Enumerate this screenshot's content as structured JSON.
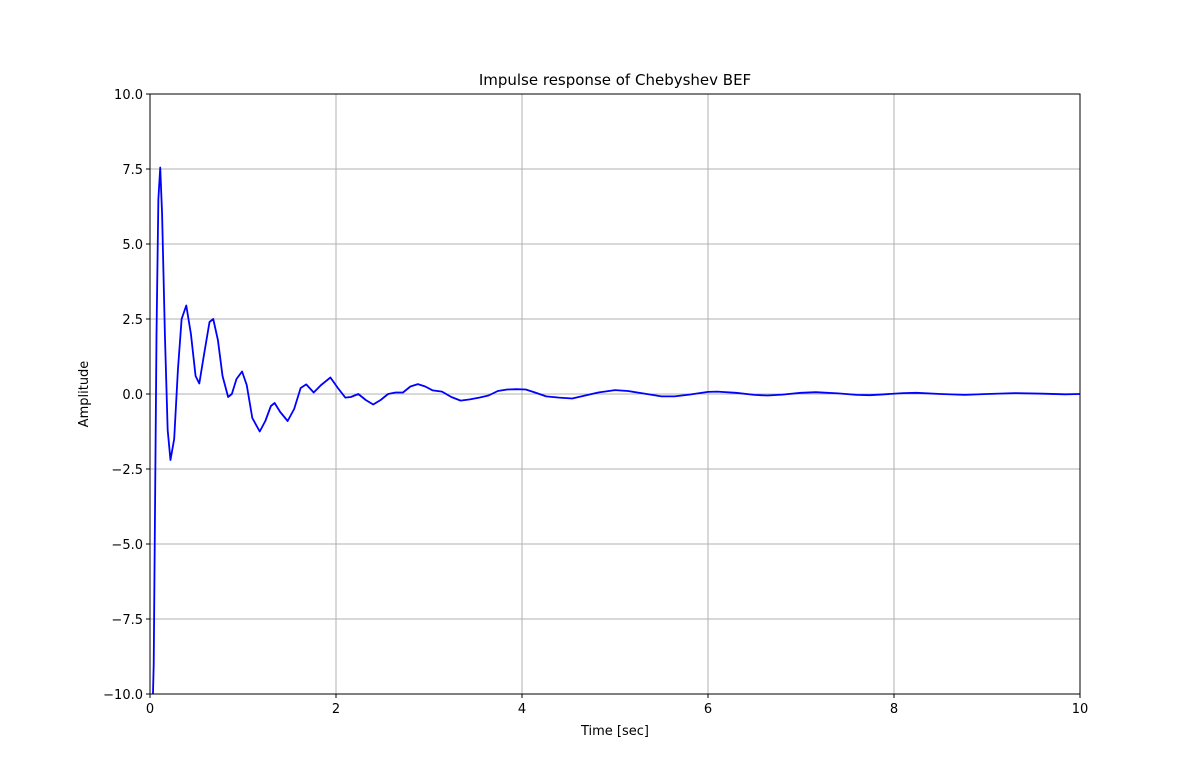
{
  "chart_data": {
    "type": "line",
    "title": "Impulse response of Chebyshev BEF",
    "x_label": "Time  [sec]",
    "y_label": "Amplitude",
    "xlim": [
      0,
      10
    ],
    "ylim": [
      -10,
      10
    ],
    "xticks": [
      0,
      2,
      4,
      6,
      8,
      10
    ],
    "yticks": [
      {
        "value": -10,
        "label": "−10.0"
      },
      {
        "value": -7.5,
        "label": "−7.5"
      },
      {
        "value": -5,
        "label": "−5.0"
      },
      {
        "value": -2.5,
        "label": "−2.5"
      },
      {
        "value": 0,
        "label": "0.0"
      },
      {
        "value": 2.5,
        "label": "2.5"
      },
      {
        "value": 5,
        "label": "5.0"
      },
      {
        "value": 7.5,
        "label": "7.5"
      },
      {
        "value": 10,
        "label": "10.0"
      }
    ],
    "grid": true,
    "x": [
      0,
      0.04,
      0.07,
      0.09,
      0.11,
      0.13,
      0.16,
      0.19,
      0.22,
      0.26,
      0.3,
      0.34,
      0.39,
      0.44,
      0.49,
      0.53,
      0.58,
      0.64,
      0.68,
      0.73,
      0.78,
      0.84,
      0.88,
      0.93,
      0.99,
      1.04,
      1.1,
      1.18,
      1.24,
      1.3,
      1.34,
      1.4,
      1.48,
      1.55,
      1.62,
      1.68,
      1.76,
      1.84,
      1.94,
      2.02,
      2.1,
      2.16,
      2.24,
      2.32,
      2.4,
      2.48,
      2.56,
      2.64,
      2.72,
      2.8,
      2.88,
      2.96,
      3.04,
      3.14,
      3.24,
      3.34,
      3.44,
      3.54,
      3.64,
      3.74,
      3.84,
      3.94,
      4.04,
      4.14,
      4.26,
      4.4,
      4.54,
      4.68,
      4.82,
      5.0,
      5.14,
      5.3,
      5.5,
      5.64,
      5.8,
      6.0,
      6.1,
      6.3,
      6.5,
      6.64,
      6.8,
      7.0,
      7.16,
      7.4,
      7.6,
      7.74,
      7.9,
      8.1,
      8.24,
      8.5,
      8.76,
      9.0,
      9.3,
      9.6,
      9.84,
      10
    ],
    "series": [
      {
        "name": "impulse response",
        "color": "#0000ff",
        "values": [
          -14,
          -9,
          2,
          6.5,
          7.55,
          6.0,
          2,
          -1.2,
          -2.2,
          -1.5,
          0.8,
          2.5,
          2.95,
          2.0,
          0.6,
          0.35,
          1.3,
          2.4,
          2.5,
          1.8,
          0.6,
          -0.1,
          0.0,
          0.5,
          0.75,
          0.3,
          -0.8,
          -1.25,
          -0.9,
          -0.4,
          -0.3,
          -0.6,
          -0.9,
          -0.5,
          0.2,
          0.32,
          0.05,
          0.3,
          0.55,
          0.2,
          -0.12,
          -0.1,
          0.0,
          -0.2,
          -0.35,
          -0.2,
          0.0,
          0.05,
          0.05,
          0.25,
          0.33,
          0.25,
          0.12,
          0.08,
          -0.1,
          -0.22,
          -0.18,
          -0.12,
          -0.05,
          0.1,
          0.15,
          0.16,
          0.15,
          0.05,
          -0.08,
          -0.12,
          -0.15,
          -0.05,
          0.05,
          0.13,
          0.1,
          0.02,
          -0.08,
          -0.08,
          -0.02,
          0.07,
          0.08,
          0.04,
          -0.03,
          -0.05,
          -0.02,
          0.04,
          0.06,
          0.02,
          -0.03,
          -0.04,
          -0.01,
          0.03,
          0.04,
          0.0,
          -0.03,
          0.0,
          0.03,
          0.01,
          -0.01,
          0.0
        ]
      }
    ]
  }
}
